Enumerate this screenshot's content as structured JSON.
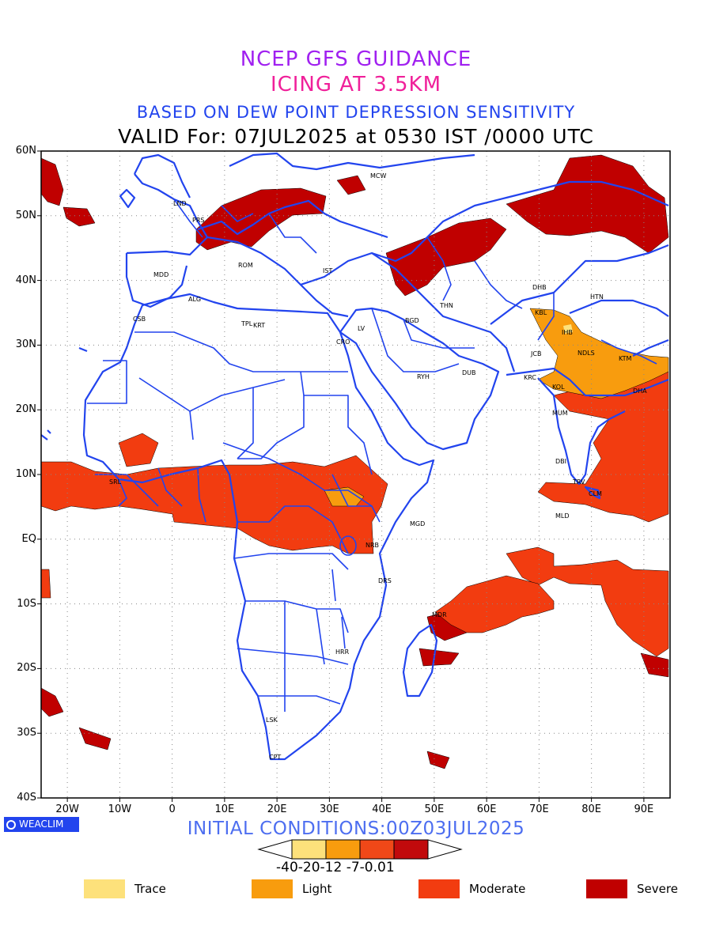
{
  "titles": {
    "line1": "NCEP GFS GUIDANCE",
    "line2": "ICING AT 3.5KM",
    "line3": "BASED ON DEW POINT DEPRESSION SENSITIVITY",
    "line4": "VALID For: 07JUL2025 at 0530 IST /0000 UTC"
  },
  "axes": {
    "lat_labels": [
      "60N",
      "50N",
      "40N",
      "30N",
      "20N",
      "10N",
      "EQ",
      "10S",
      "20S",
      "30S",
      "40S"
    ],
    "lon_labels": [
      "20W",
      "10W",
      "0",
      "10E",
      "20E",
      "30E",
      "40E",
      "50E",
      "60E",
      "70E",
      "80E",
      "90E"
    ],
    "lon_range": [
      -25,
      95
    ],
    "lat_range": [
      -40,
      60
    ],
    "grid": "dotted"
  },
  "cities": [
    "MCW",
    "LND",
    "PRS",
    "MDD",
    "ROM",
    "IST",
    "ALG",
    "CSB",
    "TPL",
    "KRT",
    "CRO",
    "LV",
    "BGD",
    "THN",
    "RYH",
    "DUB",
    "DHB",
    "HTN",
    "KBL",
    "IHB",
    "NDLS",
    "KTM",
    "JCB",
    "KRC",
    "DHA",
    "KOL",
    "MUM",
    "DBI",
    "TRV",
    "CLM",
    "MLD",
    "MGD",
    "NRB",
    "DRS",
    "MDR",
    "HRR",
    "LSK",
    "CPT",
    "SRL"
  ],
  "watermark": "WEACLIM",
  "initial_conditions": "INITIAL CONDITIONS:00Z03JUL2025",
  "colorbar": {
    "tick_text": "-40-20-12 -7-0.01",
    "colors": [
      "#fde17b",
      "#f89c0e",
      "#f04818",
      "#c10a0c"
    ]
  },
  "legend": [
    {
      "label": "Trace",
      "color": "#fde17b"
    },
    {
      "label": "Light",
      "color": "#f89c0e"
    },
    {
      "label": "Moderate",
      "color": "#f23c10"
    },
    {
      "label": "Severe",
      "color": "#c00000"
    }
  ],
  "colors": {
    "coastline": "#2244ee",
    "plot_border": "#000000"
  }
}
